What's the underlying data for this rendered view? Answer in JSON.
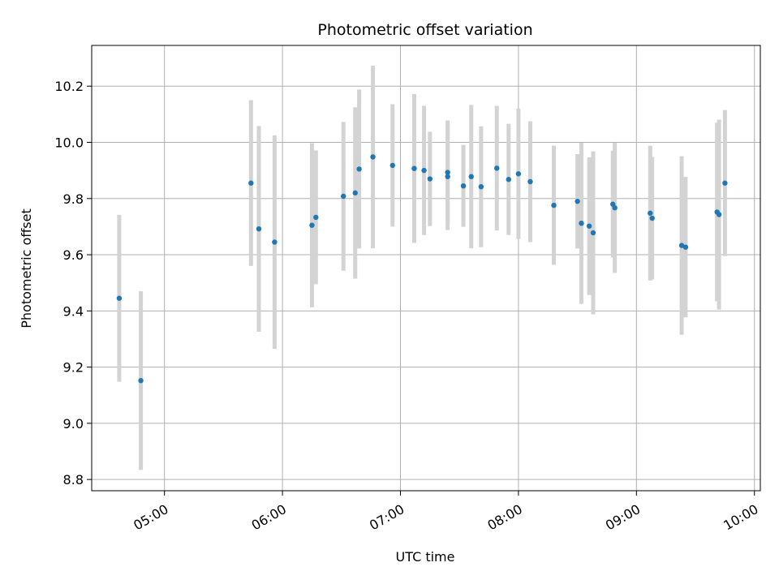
{
  "chart_data": {
    "type": "scatter",
    "title": "Photometric offset variation",
    "xlabel": "UTC time",
    "ylabel": "Photometric offset",
    "grid": true,
    "xlim": [
      "04:23",
      "10:03"
    ],
    "ylim": [
      8.76,
      10.345
    ],
    "x_ticks": [
      "05:00",
      "06:00",
      "07:00",
      "08:00",
      "09:00",
      "10:00"
    ],
    "y_ticks": [
      "8.8",
      "9.0",
      "9.2",
      "9.4",
      "9.6",
      "9.8",
      "10.0",
      "10.2"
    ],
    "colors": {
      "point": "#1f77b4",
      "errorbar": "#d3d3d3",
      "grid": "#b0b0b0"
    },
    "series": [
      {
        "points": [
          {
            "x": "04:37",
            "y": 9.445,
            "err": 0.297
          },
          {
            "x": "04:48",
            "y": 9.152,
            "err": 0.318
          },
          {
            "x": "05:44",
            "y": 9.855,
            "err": 0.295
          },
          {
            "x": "05:48",
            "y": 9.692,
            "err": 0.366
          },
          {
            "x": "05:56",
            "y": 9.645,
            "err": 0.38
          },
          {
            "x": "06:15",
            "y": 9.705,
            "err": 0.292
          },
          {
            "x": "06:17",
            "y": 9.733,
            "err": 0.238
          },
          {
            "x": "06:31",
            "y": 9.808,
            "err": 0.265
          },
          {
            "x": "06:37",
            "y": 9.82,
            "err": 0.305
          },
          {
            "x": "06:39",
            "y": 9.905,
            "err": 0.283
          },
          {
            "x": "06:46",
            "y": 9.948,
            "err": 0.325
          },
          {
            "x": "06:56",
            "y": 9.918,
            "err": 0.218
          },
          {
            "x": "07:07",
            "y": 9.907,
            "err": 0.265
          },
          {
            "x": "07:12",
            "y": 9.9,
            "err": 0.23
          },
          {
            "x": "07:15",
            "y": 9.87,
            "err": 0.168
          },
          {
            "x": "07:24",
            "y": 9.893,
            "err": 0.185
          },
          {
            "x": "07:24",
            "y": 9.878,
            "err": 0.19
          },
          {
            "x": "07:32",
            "y": 9.845,
            "err": 0.146
          },
          {
            "x": "07:36",
            "y": 9.878,
            "err": 0.255
          },
          {
            "x": "07:41",
            "y": 9.842,
            "err": 0.215
          },
          {
            "x": "07:49",
            "y": 9.908,
            "err": 0.222
          },
          {
            "x": "07:55",
            "y": 9.868,
            "err": 0.198
          },
          {
            "x": "08:00",
            "y": 9.888,
            "err": 0.232
          },
          {
            "x": "08:06",
            "y": 9.86,
            "err": 0.215
          },
          {
            "x": "08:18",
            "y": 9.776,
            "err": 0.212
          },
          {
            "x": "08:30",
            "y": 9.79,
            "err": 0.168
          },
          {
            "x": "08:32",
            "y": 9.712,
            "err": 0.287
          },
          {
            "x": "08:36",
            "y": 9.702,
            "err": 0.245
          },
          {
            "x": "08:38",
            "y": 9.678,
            "err": 0.29
          },
          {
            "x": "08:48",
            "y": 9.78,
            "err": 0.19
          },
          {
            "x": "08:49",
            "y": 9.767,
            "err": 0.232
          },
          {
            "x": "09:07",
            "y": 9.748,
            "err": 0.24
          },
          {
            "x": "09:08",
            "y": 9.73,
            "err": 0.218
          },
          {
            "x": "09:23",
            "y": 9.633,
            "err": 0.318
          },
          {
            "x": "09:25",
            "y": 9.627,
            "err": 0.25
          },
          {
            "x": "09:41",
            "y": 9.752,
            "err": 0.318
          },
          {
            "x": "09:42",
            "y": 9.743,
            "err": 0.338
          },
          {
            "x": "09:45",
            "y": 9.855,
            "err": 0.26
          }
        ]
      }
    ]
  }
}
